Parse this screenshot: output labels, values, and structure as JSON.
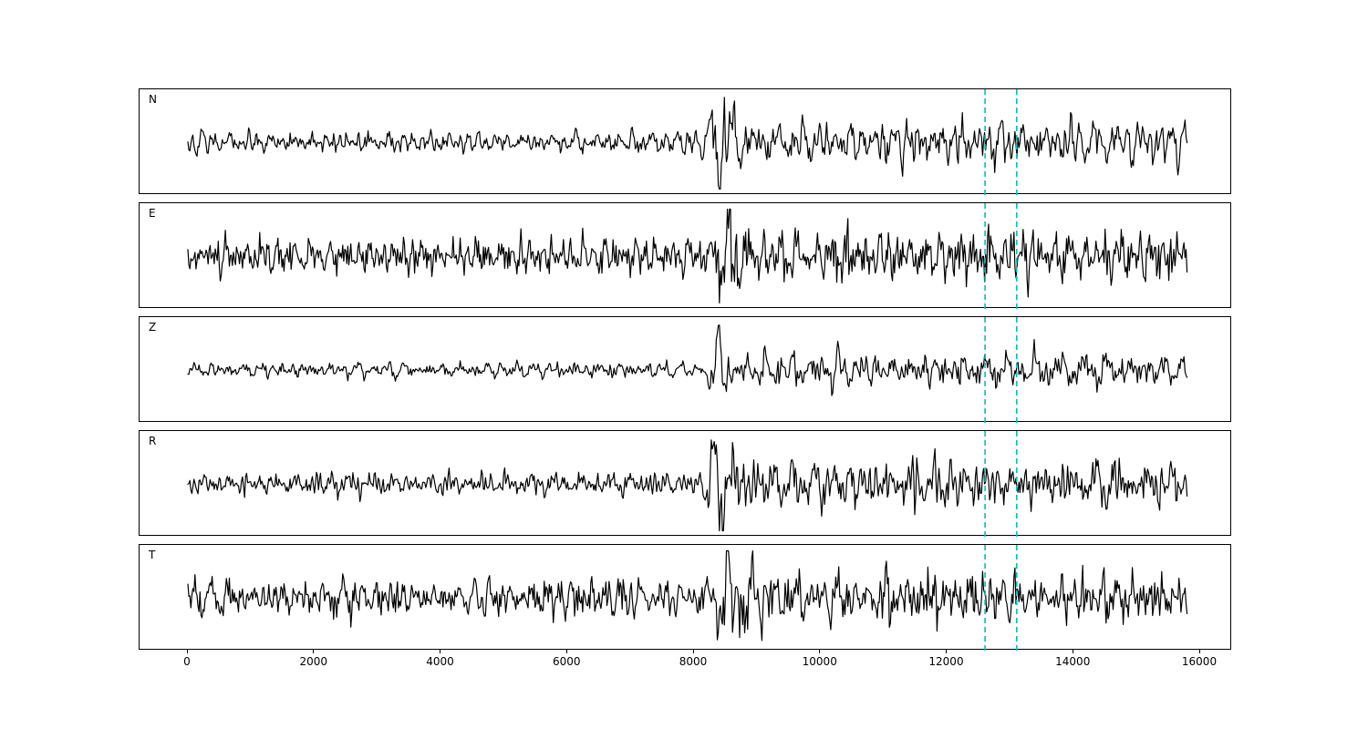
{
  "figure": {
    "background": "#ffffff",
    "border_color": "#000000",
    "trace_color": "#000000",
    "pick_line_color": "#00bfbf"
  },
  "chart_data": {
    "type": "line",
    "title": "",
    "description": "Five stacked seismogram traces (channels N, E, Z, R, T) sharing one x-axis in samples; event onset near x=8300 with large arrival, two dashed cyan pick lines near x=12600 and x=13100.",
    "xlim": [
      -760,
      16500
    ],
    "x_ticks": [
      0,
      2000,
      4000,
      6000,
      8000,
      10000,
      12000,
      14000,
      16000
    ],
    "x_tick_labels": [
      "0",
      "2000",
      "4000",
      "6000",
      "8000",
      "10000",
      "12000",
      "14000",
      "16000"
    ],
    "grid": false,
    "legend": "none",
    "pick_lines_x": [
      12600,
      13100
    ],
    "trace_x_range": [
      0,
      15800
    ],
    "panels": [
      {
        "label": "N",
        "seed": 11,
        "base_amp": 0.27,
        "coda_amp": 0.58,
        "onset_x": 8300,
        "spike_center_x": 8430,
        "spike_amp": 0.85,
        "spike_sign": -1,
        "spike_width": 160
      },
      {
        "label": "E",
        "seed": 22,
        "base_amp": 0.45,
        "coda_amp": 0.62,
        "onset_x": 8300,
        "spike_center_x": 8560,
        "spike_amp": 0.7,
        "spike_sign": 1,
        "spike_width": 170
      },
      {
        "label": "Z",
        "seed": 33,
        "base_amp": 0.17,
        "coda_amp": 0.4,
        "onset_x": 8300,
        "spike_center_x": 8380,
        "spike_amp": 1.0,
        "spike_sign": 1,
        "spike_width": 120
      },
      {
        "label": "R",
        "seed": 44,
        "base_amp": 0.28,
        "coda_amp": 0.58,
        "onset_x": 8300,
        "spike_center_x": 8440,
        "spike_amp": 0.85,
        "spike_sign": -1,
        "spike_width": 160
      },
      {
        "label": "T",
        "seed": 55,
        "base_amp": 0.44,
        "coda_amp": 0.6,
        "onset_x": 8300,
        "spike_center_x": 8560,
        "spike_amp": 0.75,
        "spike_sign": 1,
        "spike_width": 170
      }
    ]
  }
}
